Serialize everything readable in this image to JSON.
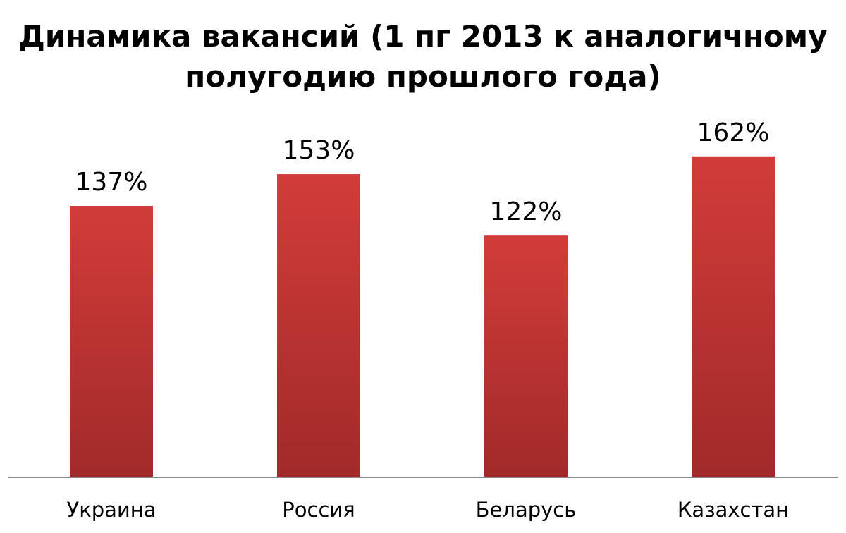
{
  "chart_data": {
    "type": "bar",
    "title_lines": [
      "Динамика вакансий (1 пг 2013 к аналогичному",
      "полугодию прошлого года)"
    ],
    "categories": [
      "Украина",
      "Россия",
      "Беларусь",
      "Казахстан"
    ],
    "values": [
      137,
      153,
      122,
      162
    ],
    "value_labels": [
      "137%",
      "153%",
      "122%",
      "162%"
    ],
    "unit": "%",
    "ylim": [
      0,
      175
    ],
    "grid": false,
    "legend": "none",
    "colors": {
      "bar_top": "#d23c3a",
      "bar_bottom": "#a12a29",
      "axis": "#8c8c8c"
    }
  }
}
